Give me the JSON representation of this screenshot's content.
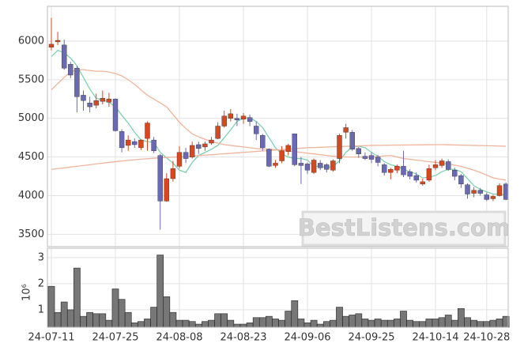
{
  "chart_data": [
    {
      "type": "candlestick",
      "categories": [
        "24-07-11",
        null,
        null,
        null,
        null,
        null,
        null,
        null,
        null,
        null,
        "24-07-25",
        null,
        null,
        null,
        null,
        null,
        null,
        null,
        null,
        null,
        "24-08-08",
        null,
        null,
        null,
        null,
        null,
        null,
        null,
        null,
        null,
        "24-08-23",
        null,
        null,
        null,
        null,
        null,
        null,
        null,
        null,
        null,
        "24-09-06",
        null,
        null,
        null,
        null,
        null,
        null,
        null,
        null,
        null,
        "24-09-25",
        null,
        null,
        null,
        null,
        null,
        null,
        null,
        null,
        null,
        "24-10-14",
        null,
        null,
        null,
        null,
        null,
        null,
        null,
        "24-10-28",
        null,
        null,
        null
      ],
      "open": [
        5920,
        5990,
        5950,
        5700,
        5650,
        5300,
        5200,
        5170,
        5220,
        5210,
        5250,
        4830,
        4650,
        4700,
        4620,
        4740,
        4720,
        4520,
        3930,
        4220,
        4380,
        4560,
        4500,
        4660,
        4630,
        4680,
        4740,
        4900,
        5000,
        5000,
        4990,
        5010,
        4900,
        4780,
        4600,
        4390,
        4450,
        4570,
        4800,
        4420,
        4410,
        4300,
        4420,
        4400,
        4330,
        4480,
        4820,
        4820,
        4610,
        4510,
        4520,
        4500,
        4400,
        4300,
        4330,
        4380,
        4310,
        4260,
        4150,
        4200,
        4360,
        4390,
        4440,
        4330,
        4260,
        4140,
        4030,
        4070,
        4010,
        3960,
        4000,
        4150
      ],
      "high": [
        6300,
        6120,
        6020,
        5730,
        5680,
        5360,
        5280,
        5320,
        5360,
        5330,
        5260,
        4860,
        4780,
        4740,
        4730,
        4960,
        4760,
        4540,
        4290,
        4450,
        4640,
        4620,
        4700,
        4700,
        4700,
        4760,
        4950,
        5100,
        5120,
        5060,
        5070,
        5050,
        4960,
        4800,
        4610,
        4460,
        4640,
        4670,
        4800,
        4500,
        4430,
        4480,
        4460,
        4420,
        4470,
        4800,
        4930,
        4850,
        4630,
        4560,
        4560,
        4530,
        4420,
        4360,
        4400,
        4580,
        4340,
        4300,
        4220,
        4400,
        4460,
        4480,
        4470,
        4360,
        4280,
        4160,
        4110,
        4100,
        4040,
        4010,
        4160,
        4170
      ],
      "low": [
        5880,
        5950,
        5630,
        5520,
        5080,
        5100,
        5080,
        5130,
        5180,
        5150,
        4830,
        4560,
        4580,
        4620,
        4590,
        4580,
        4550,
        3560,
        3920,
        4180,
        4350,
        4420,
        4480,
        4540,
        4580,
        4660,
        4730,
        4880,
        4960,
        4900,
        4930,
        4900,
        4720,
        4580,
        4370,
        4360,
        4420,
        4520,
        4380,
        4150,
        4280,
        4280,
        4330,
        4300,
        4310,
        4420,
        4740,
        4580,
        4490,
        4460,
        4420,
        4380,
        4260,
        4210,
        4290,
        4240,
        4210,
        4170,
        4130,
        4180,
        4330,
        4360,
        4320,
        4200,
        4100,
        3960,
        3980,
        4000,
        3930,
        3930,
        3990,
        3940
      ],
      "close": [
        5960,
        6010,
        5650,
        5560,
        5280,
        5230,
        5150,
        5230,
        5260,
        5250,
        4840,
        4620,
        4720,
        4660,
        4720,
        4940,
        4580,
        3930,
        4220,
        4350,
        4560,
        4480,
        4650,
        4610,
        4670,
        4720,
        4900,
        5030,
        5060,
        4980,
        5030,
        4960,
        4800,
        4620,
        4380,
        4420,
        4580,
        4650,
        4400,
        4390,
        4330,
        4460,
        4360,
        4340,
        4450,
        4780,
        4880,
        4600,
        4540,
        4480,
        4470,
        4430,
        4300,
        4340,
        4380,
        4270,
        4250,
        4200,
        4180,
        4350,
        4400,
        4450,
        4340,
        4250,
        4150,
        4020,
        4070,
        4030,
        3950,
        3990,
        4130,
        3950
      ],
      "up_color": "#d9471e",
      "down_color": "#6a6ab4",
      "overlays": [
        {
          "color": "#7fd0b0",
          "values": [
            5800,
            5880,
            5850,
            5780,
            5680,
            5530,
            5380,
            5260,
            5240,
            5210,
            5150,
            5040,
            4940,
            4820,
            4720,
            4700,
            4690,
            4560,
            4490,
            4420,
            4330,
            4300,
            4430,
            4520,
            4560,
            4600,
            4650,
            4750,
            4850,
            4960,
            5000,
            5010,
            4960,
            4880,
            4750,
            4620,
            4540,
            4500,
            4480,
            4480,
            4460,
            4380,
            4380,
            4360,
            4380,
            4450,
            4560,
            4630,
            4640,
            4620,
            4560,
            4510,
            4440,
            4400,
            4380,
            4340,
            4310,
            4280,
            4230,
            4240,
            4260,
            4310,
            4340,
            4340,
            4310,
            4220,
            4130,
            4080,
            4050,
            4020,
            4020,
            4010
          ]
        },
        {
          "color": "#f0b49a",
          "values": [
            5370,
            5450,
            5530,
            5600,
            5630,
            5630,
            5620,
            5610,
            5610,
            5600,
            5580,
            5550,
            5500,
            5440,
            5370,
            5300,
            5250,
            5200,
            5150,
            5050,
            4950,
            4870,
            4800,
            4760,
            4730,
            4700,
            4680,
            4660,
            4650,
            4640,
            4630,
            4620,
            4610,
            4605,
            4600,
            4595,
            4590,
            4580,
            4570,
            4560,
            4550,
            4540,
            4530,
            4520,
            4510,
            4505,
            4500,
            4500,
            4500,
            4500,
            4500,
            4505,
            4515,
            4520,
            4500,
            4480,
            4470,
            4460,
            4450,
            4440,
            4430,
            4420,
            4410,
            4395,
            4380,
            4355,
            4330,
            4300,
            4265,
            4230,
            4215,
            4200
          ]
        },
        {
          "color": "#f0b49a",
          "values": [
            4340,
            4350,
            4360,
            4370,
            4380,
            4390,
            4400,
            4410,
            4420,
            4430,
            4440,
            4448,
            4456,
            4464,
            4472,
            4478,
            4484,
            4490,
            4494,
            4497,
            4500,
            4506,
            4512,
            4518,
            4524,
            4530,
            4536,
            4542,
            4548,
            4554,
            4560,
            4566,
            4572,
            4578,
            4584,
            4590,
            4596,
            4602,
            4608,
            4614,
            4620,
            4623,
            4626,
            4629,
            4632,
            4635,
            4638,
            4641,
            4644,
            4647,
            4650,
            4651,
            4652,
            4653,
            4654,
            4655,
            4656,
            4657,
            4658,
            4659,
            4660,
            4660,
            4658,
            4656,
            4654,
            4652,
            4650,
            4648,
            4646,
            4644,
            4642,
            4640
          ]
        }
      ],
      "ylim": [
        3340,
        6450
      ],
      "yticks": [
        3500,
        4000,
        4500,
        5000,
        5500,
        6000
      ],
      "grid": true,
      "watermark": "BestListens.com"
    },
    {
      "type": "bar",
      "ylabel": "10⁶",
      "color": "#777777",
      "values": [
        1.9,
        0.9,
        1.3,
        1.0,
        2.6,
        0.75,
        0.9,
        0.85,
        0.85,
        0.6,
        1.8,
        1.4,
        0.9,
        0.5,
        0.55,
        0.65,
        1.1,
        3.1,
        1.5,
        0.9,
        0.6,
        0.6,
        0.55,
        0.45,
        0.55,
        0.6,
        0.85,
        0.85,
        0.6,
        0.45,
        0.45,
        0.5,
        0.7,
        0.7,
        0.75,
        0.65,
        0.6,
        0.95,
        1.35,
        0.65,
        0.5,
        0.6,
        0.45,
        0.55,
        0.6,
        1.1,
        0.75,
        0.8,
        0.85,
        0.65,
        0.6,
        0.65,
        0.6,
        0.6,
        0.65,
        0.95,
        0.6,
        0.55,
        0.55,
        0.65,
        0.65,
        0.7,
        0.8,
        0.6,
        1.05,
        0.7,
        0.6,
        0.55,
        0.55,
        0.6,
        0.65,
        0.75
      ],
      "ylim": [
        0.33,
        3.36
      ],
      "yticks": [
        1,
        2,
        3
      ],
      "grid": true
    }
  ]
}
